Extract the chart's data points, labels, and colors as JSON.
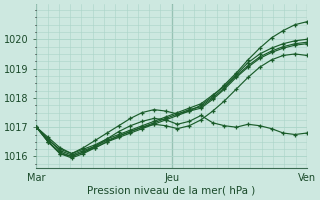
{
  "title": "Pression niveau de la mer( hPa )",
  "bg_color": "#cde8e0",
  "grid_color": "#aad4c8",
  "line_color": "#1a5c2a",
  "xtick_labels": [
    "Mar",
    "Jeu",
    "Ven"
  ],
  "xtick_positions": [
    0,
    48,
    96
  ],
  "ylim": [
    1015.6,
    1021.2
  ],
  "yticks": [
    1016,
    1017,
    1018,
    1019,
    1020
  ],
  "series": [
    [
      1017.0,
      1016.65,
      1016.3,
      1016.1,
      1016.25,
      1016.4,
      1016.6,
      1016.75,
      1016.9,
      1017.05,
      1017.2,
      1017.35,
      1017.5,
      1017.65,
      1017.8,
      1018.1,
      1018.4,
      1018.8,
      1019.2,
      1019.5,
      1019.7,
      1019.85,
      1019.95,
      1020.0
    ],
    [
      1017.0,
      1016.6,
      1016.2,
      1016.05,
      1016.2,
      1016.35,
      1016.55,
      1016.7,
      1016.85,
      1017.0,
      1017.15,
      1017.3,
      1017.45,
      1017.6,
      1017.7,
      1018.0,
      1018.35,
      1018.75,
      1019.1,
      1019.4,
      1019.6,
      1019.75,
      1019.85,
      1019.9
    ],
    [
      1017.0,
      1016.5,
      1016.15,
      1016.0,
      1016.15,
      1016.3,
      1016.5,
      1016.65,
      1016.8,
      1016.95,
      1017.1,
      1017.25,
      1017.4,
      1017.55,
      1017.65,
      1017.95,
      1018.3,
      1018.7,
      1019.05,
      1019.35,
      1019.55,
      1019.7,
      1019.8,
      1019.85
    ],
    [
      1017.0,
      1016.55,
      1016.25,
      1016.1,
      1016.3,
      1016.55,
      1016.8,
      1017.05,
      1017.3,
      1017.5,
      1017.6,
      1017.55,
      1017.45,
      1017.55,
      1017.75,
      1018.05,
      1018.45,
      1018.85,
      1019.3,
      1019.7,
      1020.05,
      1020.3,
      1020.5,
      1020.6
    ],
    [
      1017.0,
      1016.5,
      1016.1,
      1016.0,
      1016.15,
      1016.35,
      1016.6,
      1016.85,
      1017.05,
      1017.2,
      1017.3,
      1017.25,
      1017.1,
      1017.2,
      1017.4,
      1017.15,
      1017.05,
      1017.0,
      1017.1,
      1017.05,
      1016.95,
      1016.8,
      1016.75,
      1016.8
    ],
    [
      1017.0,
      1016.5,
      1016.1,
      1015.95,
      1016.1,
      1016.3,
      1016.5,
      1016.7,
      1016.85,
      1017.0,
      1017.1,
      1017.05,
      1016.95,
      1017.05,
      1017.25,
      1017.55,
      1017.9,
      1018.3,
      1018.7,
      1019.05,
      1019.3,
      1019.45,
      1019.5,
      1019.45
    ]
  ],
  "n_points": 24,
  "xlim": [
    0,
    96
  ]
}
